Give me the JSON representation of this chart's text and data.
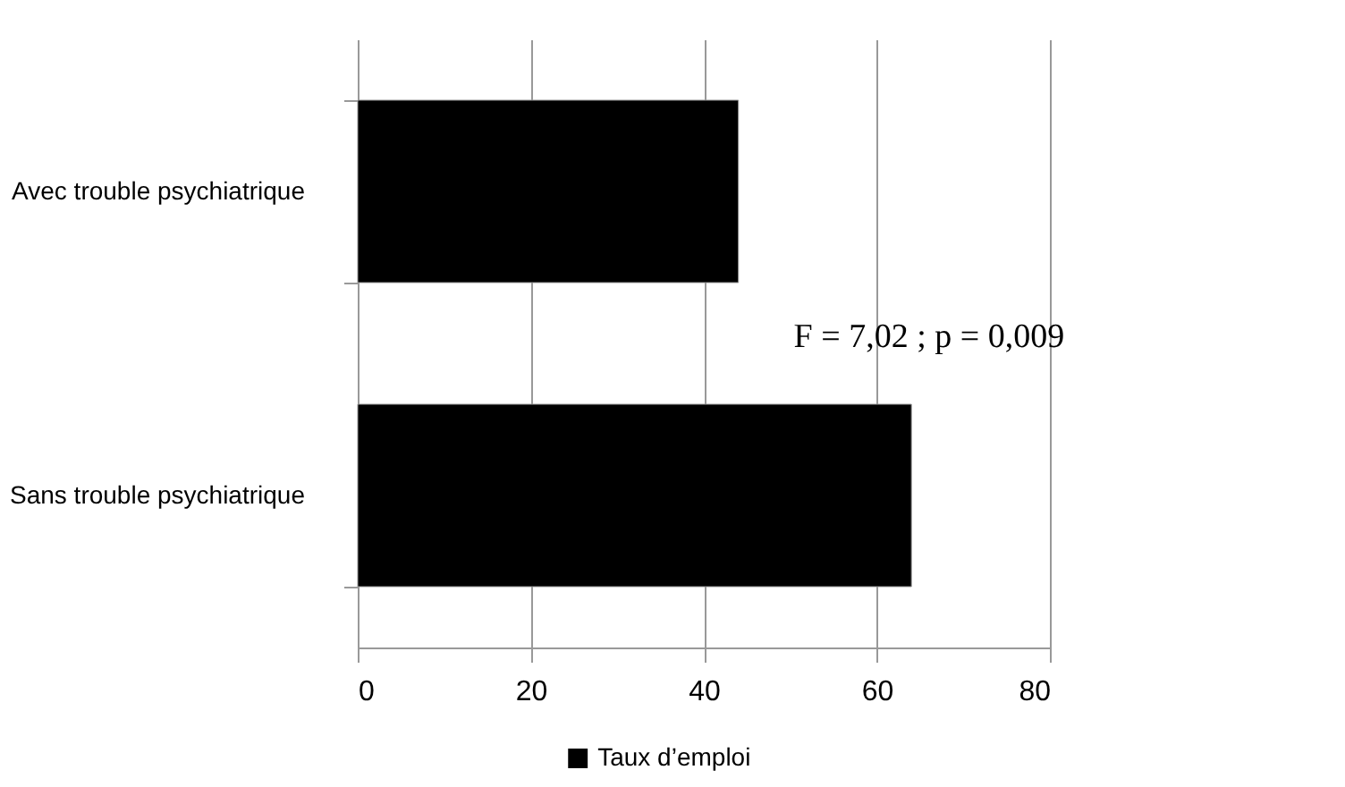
{
  "chart_data": {
    "type": "bar",
    "orientation": "horizontal",
    "categories": [
      "Avec trouble psychiatrique",
      "Sans trouble psychiatrique"
    ],
    "series": [
      {
        "name": "Taux d’emploi",
        "color": "#000000",
        "values": [
          44,
          64
        ]
      }
    ],
    "xlim": [
      0,
      80
    ],
    "xticks": [
      0,
      20,
      40,
      60,
      80
    ],
    "grid": "x",
    "legend": "bottom",
    "annotations": [
      "F = 7,02 ; p = 0,009"
    ]
  }
}
